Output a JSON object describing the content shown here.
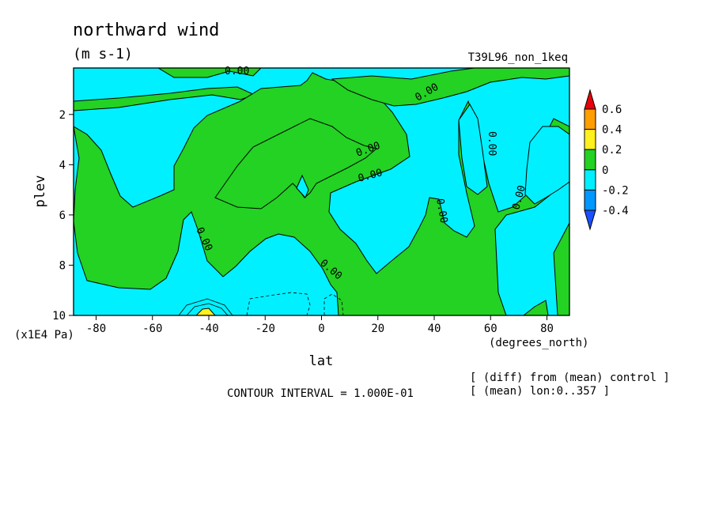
{
  "chart_data": {
    "type": "contour",
    "title": "northward wind",
    "units": "(m s-1)",
    "run_label": "T39L96_non_1keq",
    "xlabel": "lat",
    "x_units": "(degrees_north)",
    "ylabel": "plev",
    "y_multiplier": "(x1E4 Pa)",
    "xlim": [
      -88,
      88
    ],
    "ylim": [
      10,
      0.15
    ],
    "x_ticks": [
      -80,
      -60,
      -40,
      -20,
      0,
      20,
      40,
      60,
      80
    ],
    "x_tick_labels": [
      "-80",
      "-60",
      "-40",
      "-20",
      "0",
      "20",
      "40",
      "60",
      "80"
    ],
    "y_ticks": [
      2,
      4,
      6,
      8,
      10
    ],
    "y_tick_labels": [
      "2",
      "4",
      "6",
      "8",
      "10"
    ],
    "contour_interval_text": "CONTOUR INTERVAL = 1.000E-01",
    "contour_labels": [
      "0.00",
      "0.00",
      "0.00",
      "0.00",
      "0.00",
      "0.00",
      "0.00",
      "0.00",
      "0.00",
      "0.00"
    ],
    "colorbar": {
      "levels": [
        0.6,
        0.4,
        0.2,
        0,
        -0.2,
        -0.4
      ],
      "labels": [
        "0.6",
        "0.4",
        "0.2",
        "0",
        "-0.2",
        "-0.4"
      ],
      "colors": {
        "above_0.6": "#e8000b",
        "0.4_to_0.6": "#ff9e00",
        "0.2_to_0.4": "#fff01e",
        "0_to_0.2": "#23d223",
        "-0.2_to_0": "#00f0ff",
        "-0.4_to_-0.2": "#0097ff",
        "below_-0.4": "#1a50ff"
      }
    },
    "notes": [
      "[ (diff) from (mean) control ]",
      "[ (mean) lon:0..357 ]"
    ]
  }
}
